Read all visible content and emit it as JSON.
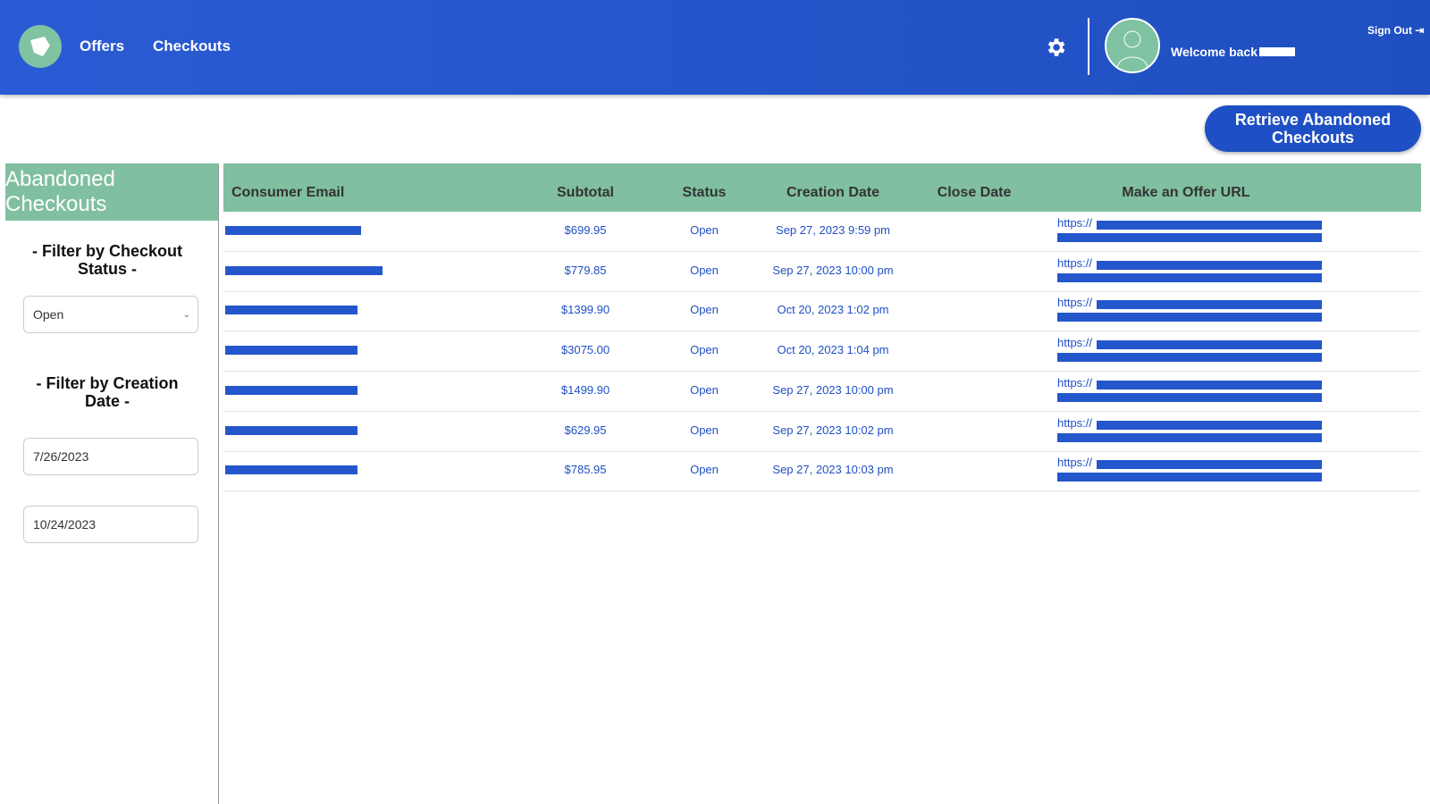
{
  "nav": {
    "links": [
      "Offers",
      "Checkouts"
    ],
    "welcome": "Welcome back",
    "sign_out": "Sign Out"
  },
  "action_button": "Retrieve Abandoned Checkouts",
  "sidebar": {
    "title": "Abandoned Checkouts",
    "status_filter": {
      "label": "- Filter by Checkout Status -",
      "value": "Open"
    },
    "date_filter": {
      "label": "- Filter by Creation Date -",
      "start": "7/26/2023",
      "end": "10/24/2023"
    }
  },
  "table": {
    "headers": [
      "Consumer Email",
      "Subtotal",
      "Status",
      "Creation Date",
      "Close Date",
      "Make an Offer URL"
    ],
    "rows": [
      {
        "subtotal": "$699.95",
        "status": "Open",
        "created": "Sep 27, 2023 9:59 pm",
        "url": "https://"
      },
      {
        "subtotal": "$779.85",
        "status": "Open",
        "created": "Sep 27, 2023 10:00 pm",
        "url": "https://"
      },
      {
        "subtotal": "$1399.90",
        "status": "Open",
        "created": "Oct 20, 2023 1:02 pm",
        "url": "https://"
      },
      {
        "subtotal": "$3075.00",
        "status": "Open",
        "created": "Oct 20, 2023 1:04 pm",
        "url": "https://"
      },
      {
        "subtotal": "$1499.90",
        "status": "Open",
        "created": "Sep 27, 2023 10:00 pm",
        "url": "https://"
      },
      {
        "subtotal": "$629.95",
        "status": "Open",
        "created": "Sep 27, 2023 10:02 pm",
        "url": "https://"
      },
      {
        "subtotal": "$785.95",
        "status": "Open",
        "created": "Sep 27, 2023 10:03 pm",
        "url": "https://"
      }
    ]
  }
}
